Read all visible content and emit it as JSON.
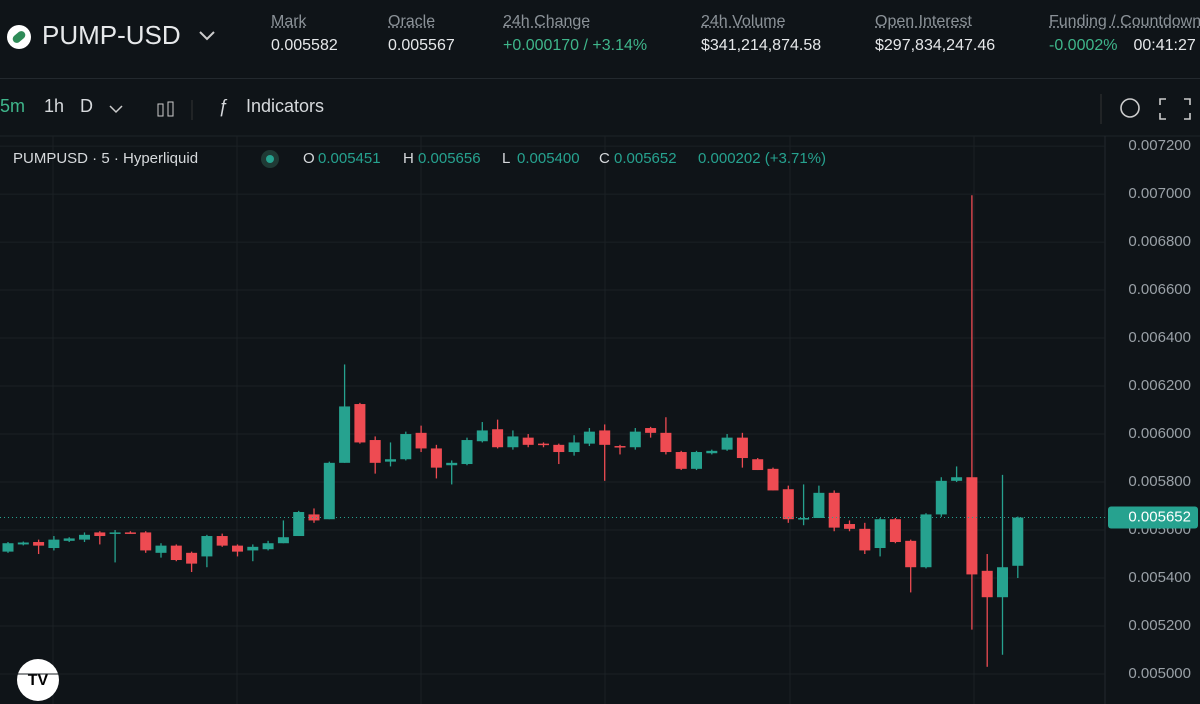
{
  "header": {
    "symbol": "PUMP-USD",
    "stats": [
      {
        "label": "Mark",
        "value": "0.005582"
      },
      {
        "label": "Oracle",
        "value": "0.005567"
      },
      {
        "label": "24h Change",
        "value": "+0.000170 / +3.14%"
      },
      {
        "label": "24h Volume",
        "value": "$341,214,874.58"
      },
      {
        "label": "Open Interest",
        "value": "$297,834,247.46"
      },
      {
        "label": "Funding / Countdown",
        "value": "-0.0002%",
        "extra": "00:41:27"
      }
    ]
  },
  "toolbar": {
    "intervals": [
      "5m",
      "1h",
      "D"
    ],
    "indicators": "Indicators"
  },
  "chart_data": {
    "type": "candlestick",
    "title": "PUMPUSD · 5 · Hyperliquid",
    "legend": [
      {
        "key": "O",
        "value": "0.005451"
      },
      {
        "key": "H",
        "value": "0.005656"
      },
      {
        "key": "L",
        "value": "0.005400"
      },
      {
        "key": "C",
        "value": "0.005652"
      }
    ],
    "change": "0.000202 (+3.71%)",
    "up_color": "#26a28f",
    "down_color": "#ee4b52",
    "open": [
      0.00551,
      0.00554,
      0.00555,
      0.005525,
      0.005555,
      0.00556,
      0.00559,
      0.005585,
      0.00559,
      0.00559,
      0.005505,
      0.005535,
      0.005505,
      0.00549,
      0.005575,
      0.005535,
      0.005515,
      0.00552,
      0.005545,
      0.005575,
      0.005665,
      0.005645,
      0.00588,
      0.006125,
      0.005975,
      0.005885,
      0.005895,
      0.006005,
      0.00594,
      0.00587,
      0.005875,
      0.00597,
      0.00602,
      0.005945,
      0.005985,
      0.00596,
      0.005955,
      0.005925,
      0.00596,
      0.006015,
      0.00595,
      0.005945,
      0.006025,
      0.006005,
      0.005925,
      0.005855,
      0.00592,
      0.005935,
      0.005985,
      0.005895,
      0.005855,
      0.00577,
      0.005645,
      0.00565,
      0.005755,
      0.005625,
      0.005605,
      0.005525,
      0.005645,
      0.005555,
      0.005445,
      0.005665,
      0.005805,
      0.00582,
      0.00543,
      0.00532,
      0.005451
    ],
    "high": [
      0.00555,
      0.005552,
      0.00556,
      0.005575,
      0.00557,
      0.00559,
      0.005595,
      0.0056,
      0.005595,
      0.005595,
      0.005545,
      0.00554,
      0.00551,
      0.00558,
      0.005585,
      0.00554,
      0.00554,
      0.005555,
      0.00564,
      0.00568,
      0.00569,
      0.005885,
      0.00629,
      0.00613,
      0.00599,
      0.005965,
      0.00601,
      0.006035,
      0.005955,
      0.00589,
      0.005985,
      0.00605,
      0.00606,
      0.006015,
      0.006,
      0.005965,
      0.00596,
      0.005995,
      0.006025,
      0.00604,
      0.005955,
      0.006025,
      0.00603,
      0.00607,
      0.00593,
      0.00593,
      0.005935,
      0.006,
      0.006005,
      0.0059,
      0.00586,
      0.005785,
      0.00579,
      0.005785,
      0.005765,
      0.00564,
      0.00563,
      0.00565,
      0.00565,
      0.00556,
      0.00567,
      0.00582,
      0.005865,
      0.006995,
      0.0055,
      0.00583,
      0.005656
    ],
    "low": [
      0.005505,
      0.005536,
      0.0055,
      0.005515,
      0.00555,
      0.00555,
      0.00554,
      0.005465,
      0.005585,
      0.005505,
      0.005485,
      0.00547,
      0.005425,
      0.005445,
      0.00553,
      0.00549,
      0.00547,
      0.005515,
      0.005545,
      0.005575,
      0.00563,
      0.005645,
      0.00588,
      0.00596,
      0.005835,
      0.005865,
      0.00589,
      0.005925,
      0.005815,
      0.00579,
      0.00587,
      0.005965,
      0.00594,
      0.005935,
      0.005945,
      0.005945,
      0.005875,
      0.00591,
      0.00595,
      0.005805,
      0.005915,
      0.005935,
      0.005985,
      0.005915,
      0.00585,
      0.00585,
      0.005915,
      0.00593,
      0.00586,
      0.00585,
      0.005765,
      0.00563,
      0.00562,
      0.00565,
      0.005595,
      0.005595,
      0.0055,
      0.00549,
      0.005545,
      0.00534,
      0.00544,
      0.005655,
      0.0058,
      0.005185,
      0.00503,
      0.00508,
      0.0054
    ],
    "close": [
      0.005545,
      0.005548,
      0.005535,
      0.00556,
      0.005565,
      0.00558,
      0.005575,
      0.00559,
      0.005588,
      0.005515,
      0.005535,
      0.005475,
      0.00546,
      0.005575,
      0.005535,
      0.00551,
      0.00553,
      0.005545,
      0.00557,
      0.005675,
      0.00564,
      0.00588,
      0.006115,
      0.005965,
      0.00588,
      0.005895,
      0.006,
      0.00594,
      0.00586,
      0.00588,
      0.005975,
      0.006015,
      0.005945,
      0.00599,
      0.005955,
      0.005955,
      0.005925,
      0.005965,
      0.00601,
      0.005955,
      0.005945,
      0.00601,
      0.006005,
      0.005925,
      0.005855,
      0.005925,
      0.00593,
      0.005985,
      0.0059,
      0.00585,
      0.005765,
      0.005645,
      0.00565,
      0.005755,
      0.00561,
      0.005605,
      0.005515,
      0.005645,
      0.00555,
      0.005445,
      0.005665,
      0.005805,
      0.00582,
      0.005415,
      0.00532,
      0.005445,
      0.005652
    ],
    "ylim": [
      0.004875,
      0.007242
    ],
    "yticks": [
      {
        "value": 0.005,
        "label": "0.005000"
      },
      {
        "value": 0.0052,
        "label": "0.005200"
      },
      {
        "value": 0.0054,
        "label": "0.005400"
      },
      {
        "value": 0.0056,
        "label": "0.005600"
      },
      {
        "value": 0.0058,
        "label": "0.005800"
      },
      {
        "value": 0.006,
        "label": "0.006000"
      },
      {
        "value": 0.0062,
        "label": "0.006200"
      },
      {
        "value": 0.0064,
        "label": "0.006400"
      },
      {
        "value": 0.0066,
        "label": "0.006600"
      },
      {
        "value": 0.0068,
        "label": "0.006800"
      },
      {
        "value": 0.007,
        "label": "0.007000"
      },
      {
        "value": 0.0072,
        "label": "0.007200"
      }
    ],
    "last_price": {
      "value": 0.005652,
      "label": "0.005652"
    },
    "grid": true
  }
}
